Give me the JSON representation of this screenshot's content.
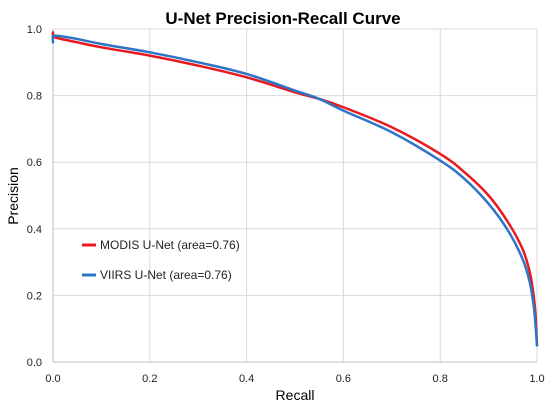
{
  "chart_data": {
    "type": "line",
    "title": "U-Net Precision-Recall Curve",
    "xlabel": "Recall",
    "ylabel": "Precision",
    "xlim": [
      0,
      1
    ],
    "ylim": [
      0,
      1
    ],
    "xticks": [
      "0.0",
      "0.2",
      "0.4",
      "0.6",
      "0.8",
      "1.0"
    ],
    "yticks": [
      "0.0",
      "0.2",
      "0.4",
      "0.6",
      "0.8",
      "1.0"
    ],
    "grid": true,
    "legend_position": "center-left",
    "series": [
      {
        "name": "MODIS U-Net (area=0.76)",
        "color": "#e8191f",
        "x": [
          0.0,
          0.0,
          0.005,
          0.05,
          0.1,
          0.2,
          0.3,
          0.4,
          0.5,
          0.55,
          0.6,
          0.7,
          0.8,
          0.85,
          0.9,
          0.94,
          0.97,
          0.985,
          0.993,
          0.997,
          1.0
        ],
        "y": [
          0.97,
          0.99,
          0.975,
          0.96,
          0.945,
          0.92,
          0.89,
          0.855,
          0.81,
          0.79,
          0.765,
          0.705,
          0.625,
          0.57,
          0.5,
          0.42,
          0.34,
          0.27,
          0.2,
          0.14,
          0.05
        ]
      },
      {
        "name": "VIIRS U-Net (area=0.76)",
        "color": "#2e75c6",
        "x": [
          0.0,
          0.0,
          0.005,
          0.05,
          0.1,
          0.2,
          0.3,
          0.4,
          0.5,
          0.55,
          0.6,
          0.7,
          0.8,
          0.85,
          0.9,
          0.94,
          0.97,
          0.985,
          0.993,
          0.997,
          1.0
        ],
        "y": [
          0.96,
          0.975,
          0.98,
          0.97,
          0.955,
          0.93,
          0.9,
          0.865,
          0.815,
          0.79,
          0.755,
          0.69,
          0.605,
          0.55,
          0.475,
          0.395,
          0.31,
          0.24,
          0.17,
          0.11,
          0.05
        ]
      }
    ]
  }
}
